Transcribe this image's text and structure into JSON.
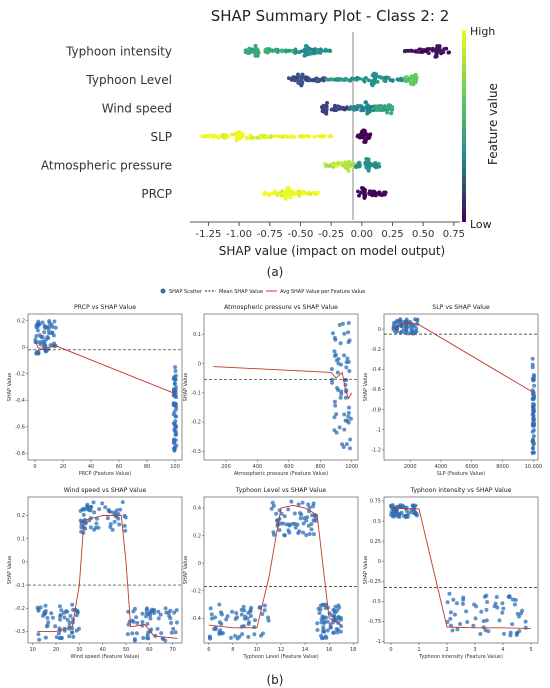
{
  "figure_labels": {
    "a": "(a)",
    "b": "(b)"
  },
  "colors": {
    "low": "#3b0f70",
    "mid": "#2a788e",
    "high": "#e7e419",
    "avg_line": "#c0392b",
    "scatter": "#2e6db4",
    "mean_line": "#222222"
  },
  "chart_data": [
    {
      "type": "scatter",
      "panel": "a",
      "title": "SHAP Summary Plot - Class 2: 2",
      "xlabel": "SHAP value (impact on model output)",
      "ylabel": "",
      "xlim": [
        -1.4,
        0.8
      ],
      "xticks": [
        -1.25,
        -1.0,
        -0.75,
        -0.5,
        -0.25,
        0.0,
        0.25,
        0.5,
        0.75
      ],
      "xtick_labels": [
        "-1.25",
        "-1.00",
        "-0.75",
        "-0.50",
        "-0.25",
        "0.00",
        "0.25",
        "0.50",
        "0.75"
      ],
      "features": [
        "Typhoon intensity",
        "Typhoon Level",
        "Wind speed",
        "SLP",
        "Atmospheric pressure",
        "PRCP"
      ],
      "colorbar": {
        "label": "Feature value",
        "high": "High",
        "low": "Low"
      },
      "clusters": [
        {
          "feature": "Typhoon intensity",
          "groups": [
            {
              "range": [
                -0.95,
                -0.55
              ],
              "center": -0.85,
              "level": 0.6
            },
            {
              "range": [
                -0.55,
                -0.25
              ],
              "center": -0.45,
              "level": 0.5
            },
            {
              "range": [
                0.35,
                0.72
              ],
              "center": 0.62,
              "level": 0.05
            }
          ]
        },
        {
          "feature": "Typhoon Level",
          "groups": [
            {
              "range": [
                -0.6,
                -0.3
              ],
              "center": -0.5,
              "level": 0.25
            },
            {
              "range": [
                -0.3,
                0.45
              ],
              "center": 0.1,
              "level": 0.5
            },
            {
              "range": [
                0.35,
                0.45
              ],
              "center": 0.42,
              "level": 0.75
            }
          ]
        },
        {
          "feature": "Wind speed",
          "groups": [
            {
              "range": [
                -0.33,
                -0.1
              ],
              "center": -0.3,
              "level": 0.2
            },
            {
              "range": [
                -0.1,
                0.25
              ],
              "center": 0.05,
              "level": 0.45
            },
            {
              "range": [
                0.1,
                0.25
              ],
              "center": 0.22,
              "level": 0.6
            }
          ]
        },
        {
          "feature": "SLP",
          "groups": [
            {
              "range": [
                -1.3,
                -0.25
              ],
              "center": -1.0,
              "level": 1.0
            },
            {
              "range": [
                -0.05,
                0.08
              ],
              "center": 0.02,
              "level": 0.0
            }
          ]
        },
        {
          "feature": "Atmospheric pressure",
          "groups": [
            {
              "range": [
                -0.3,
                -0.05
              ],
              "center": -0.12,
              "level": 0.9
            },
            {
              "range": [
                -0.05,
                0.15
              ],
              "center": 0.05,
              "level": 0.5
            }
          ]
        },
        {
          "feature": "PRCP",
          "groups": [
            {
              "range": [
                -0.8,
                -0.35
              ],
              "center": -0.6,
              "level": 1.0
            },
            {
              "range": [
                -0.05,
                0.2
              ],
              "center": 0.02,
              "level": 0.0
            }
          ]
        }
      ]
    },
    {
      "type": "scatter",
      "panel": "b",
      "legend": [
        "SHAP Scatter",
        "Mean SHAP Value",
        "Avg SHAP Value per Feature Value"
      ],
      "legend_position": "top-center",
      "subplots": [
        {
          "title": "PRCP vs SHAP Value",
          "xlabel": "PRCP (Feature Value)",
          "ylabel": "SHAP Value",
          "xlim": [
            -5,
            105
          ],
          "ylim": [
            -0.85,
            0.25
          ],
          "xticks": [
            0,
            20,
            40,
            60,
            80,
            100
          ],
          "yticks": [
            0.2,
            0.0,
            -0.2,
            -0.4,
            -0.6,
            -0.8
          ],
          "mean": -0.02,
          "clusters": [
            {
              "x": [
                0,
                15
              ],
              "y": [
                -0.05,
                0.2
              ]
            },
            {
              "x": [
                99,
                101
              ],
              "y": [
                -0.8,
                -0.15
              ]
            }
          ],
          "avg_line": [
            [
              0,
              0.05
            ],
            [
              2,
              0.0
            ],
            [
              5,
              -0.02
            ],
            [
              10,
              0.0
            ],
            [
              15,
              0.01
            ],
            [
              100,
              -0.35
            ]
          ]
        },
        {
          "title": "Atmospheric pressure vs SHAP Value",
          "xlabel": "Atmospheric pressure (Feature Value)",
          "ylabel": "SHAP Value",
          "xlim": [
            60,
            1040
          ],
          "ylim": [
            -0.33,
            0.17
          ],
          "xticks": [
            200,
            400,
            600,
            800,
            1000
          ],
          "yticks": [
            0.1,
            0.0,
            -0.1,
            -0.2,
            -0.3
          ],
          "mean": -0.055,
          "clusters": [
            {
              "x": [
                870,
                1000
              ],
              "y": [
                -0.32,
                0.15
              ]
            }
          ],
          "avg_line": [
            [
              120,
              -0.01
            ],
            [
              870,
              -0.03
            ],
            [
              900,
              -0.05
            ],
            [
              940,
              -0.03
            ],
            [
              960,
              -0.09
            ],
            [
              980,
              -0.12
            ],
            [
              1000,
              -0.1
            ]
          ]
        },
        {
          "title": "SLP vs SHAP Value",
          "xlabel": "SLP (Feature Value)",
          "ylabel": "SHAP Value",
          "xlim": [
            300,
            10300
          ],
          "ylim": [
            -1.3,
            0.15
          ],
          "xticks": [
            2000,
            4000,
            6000,
            8000,
            10000
          ],
          "xtick_labels": [
            "2000",
            "4000",
            "6000",
            "8000",
            "10,000"
          ],
          "yticks": [
            0.0,
            -0.2,
            -0.4,
            -0.6,
            -0.8,
            -1.0,
            -1.2
          ],
          "mean": -0.05,
          "clusters": [
            {
              "x": [
                900,
                2500
              ],
              "y": [
                -0.05,
                0.1
              ]
            },
            {
              "x": [
                9950,
                10050
              ],
              "y": [
                -1.25,
                -0.28
              ]
            }
          ],
          "avg_line": [
            [
              1000,
              0.0
            ],
            [
              1500,
              0.05
            ],
            [
              2000,
              0.06
            ],
            [
              2500,
              0.05
            ],
            [
              10000,
              -0.63
            ]
          ]
        },
        {
          "title": "Wind speed vs SHAP Value",
          "xlabel": "Wind speed (Feature Value)",
          "ylabel": "SHAP Value",
          "xlim": [
            8,
            74
          ],
          "ylim": [
            -0.35,
            0.28
          ],
          "xticks": [
            10,
            20,
            30,
            40,
            50,
            60,
            70
          ],
          "yticks": [
            0.2,
            0.1,
            0.0,
            -0.1,
            -0.2,
            -0.3
          ],
          "mean": -0.1,
          "clusters": [
            {
              "x": [
                12,
                30
              ],
              "y": [
                -0.34,
                -0.18
              ]
            },
            {
              "x": [
                30,
                50
              ],
              "y": [
                0.12,
                0.26
              ]
            },
            {
              "x": [
                50,
                72
              ],
              "y": [
                -0.34,
                -0.2
              ]
            }
          ],
          "avg_line": [
            [
              12,
              -0.3
            ],
            [
              20,
              -0.3
            ],
            [
              27,
              -0.28
            ],
            [
              30,
              -0.1
            ],
            [
              32,
              0.18
            ],
            [
              40,
              0.2
            ],
            [
              48,
              0.2
            ],
            [
              50,
              0.0
            ],
            [
              52,
              -0.28
            ],
            [
              58,
              -0.27
            ],
            [
              62,
              -0.32
            ],
            [
              72,
              -0.33
            ]
          ]
        },
        {
          "title": "Typhoon Level vs SHAP Value",
          "xlabel": "Typhoon Level (Feature Value)",
          "ylabel": "SHAP Value",
          "xlim": [
            5.6,
            18.4
          ],
          "ylim": [
            -0.58,
            0.48
          ],
          "xticks": [
            6,
            8,
            10,
            12,
            14,
            16,
            18
          ],
          "yticks": [
            0.4,
            0.2,
            0.0,
            -0.2,
            -0.4
          ],
          "mean": -0.17,
          "clusters": [
            {
              "x": [
                6,
                11
              ],
              "y": [
                -0.55,
                -0.3
              ]
            },
            {
              "x": [
                11,
                15
              ],
              "y": [
                0.2,
                0.45
              ]
            },
            {
              "x": [
                15,
                17
              ],
              "y": [
                -0.55,
                -0.3
              ]
            }
          ],
          "avg_line": [
            [
              6,
              -0.45
            ],
            [
              8,
              -0.47
            ],
            [
              10,
              -0.47
            ],
            [
              11,
              -0.1
            ],
            [
              12,
              0.4
            ],
            [
              13,
              0.42
            ],
            [
              14,
              0.4
            ],
            [
              15,
              0.35
            ],
            [
              16,
              -0.4
            ],
            [
              17,
              -0.45
            ]
          ]
        },
        {
          "title": "Typhoon intensity vs SHAP Value",
          "xlabel": "Typhoon intensity (Feature Value)",
          "ylabel": "SHAP Value",
          "xlim": [
            -0.25,
            5.25
          ],
          "ylim": [
            -1.02,
            0.8
          ],
          "xticks": [
            0,
            1,
            2,
            3,
            4,
            5
          ],
          "yticks": [
            0.75,
            0.5,
            0.25,
            0.0,
            -0.25,
            -0.5,
            -0.75,
            -1.0
          ],
          "mean": -0.33,
          "clusters": [
            {
              "x": [
                0,
                1
              ],
              "y": [
                0.55,
                0.7
              ]
            },
            {
              "x": [
                2,
                5
              ],
              "y": [
                -0.95,
                -0.4
              ]
            }
          ],
          "avg_line": [
            [
              0,
              0.66
            ],
            [
              1,
              0.65
            ],
            [
              2,
              -0.82
            ],
            [
              3,
              -0.83
            ],
            [
              4,
              -0.83
            ],
            [
              5,
              -0.84
            ]
          ]
        }
      ]
    }
  ]
}
